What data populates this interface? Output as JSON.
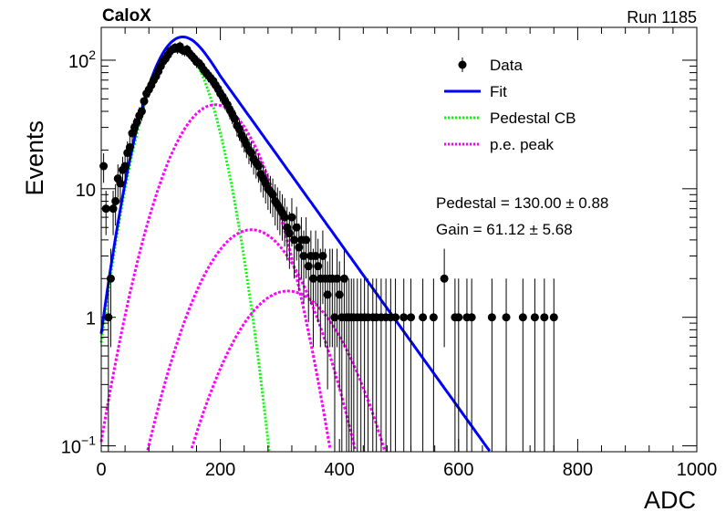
{
  "chart_data": {
    "type": "scatter",
    "title_left": "CaloX",
    "title_right": "Run 1185",
    "xlabel": "ADC",
    "ylabel": "Events",
    "xlim": [
      0,
      1000
    ],
    "ylim": [
      0.09,
      180
    ],
    "yscale": "log",
    "x_ticks": [
      0,
      200,
      400,
      600,
      800,
      1000
    ],
    "y_ticks": [
      {
        "value": 0.1,
        "base": "10",
        "exp": "−1"
      },
      {
        "value": 1,
        "label": "1"
      },
      {
        "value": 10,
        "label": "10"
      },
      {
        "value": 100,
        "base": "10",
        "exp": "2"
      }
    ],
    "legend": {
      "placement": "top-right",
      "entries": [
        {
          "label": "Data",
          "kind": "marker",
          "color": "#000000"
        },
        {
          "label": "Fit",
          "kind": "line",
          "color": "#0000ff"
        },
        {
          "label": "Pedestal CB",
          "kind": "dotted",
          "color": "#00ff00"
        },
        {
          "label": "p.e. peak",
          "kind": "dotted",
          "color": "#ff00ff"
        }
      ]
    },
    "stats": [
      {
        "label": "Pedestal = 130.00",
        "pm": "±",
        "err": "0.88"
      },
      {
        "label": "Gain = 61.12",
        "pm": "±",
        "err": "5.68"
      }
    ],
    "data_points": [
      [
        4,
        15
      ],
      [
        8,
        7
      ],
      [
        12,
        1
      ],
      [
        16,
        2
      ],
      [
        20,
        7
      ],
      [
        24,
        8
      ],
      [
        28,
        12
      ],
      [
        32,
        11
      ],
      [
        36,
        14
      ],
      [
        40,
        15
      ],
      [
        44,
        19
      ],
      [
        48,
        21
      ],
      [
        52,
        27
      ],
      [
        56,
        30
      ],
      [
        60,
        33
      ],
      [
        64,
        37
      ],
      [
        68,
        40
      ],
      [
        72,
        48
      ],
      [
        76,
        55
      ],
      [
        80,
        59
      ],
      [
        84,
        64
      ],
      [
        88,
        70
      ],
      [
        92,
        75
      ],
      [
        96,
        82
      ],
      [
        100,
        90
      ],
      [
        104,
        98
      ],
      [
        108,
        103
      ],
      [
        112,
        110
      ],
      [
        116,
        118
      ],
      [
        120,
        122
      ],
      [
        124,
        125
      ],
      [
        128,
        123
      ],
      [
        132,
        128
      ],
      [
        136,
        120
      ],
      [
        140,
        118
      ],
      [
        144,
        121
      ],
      [
        148,
        113
      ],
      [
        152,
        108
      ],
      [
        156,
        103
      ],
      [
        160,
        97
      ],
      [
        164,
        95
      ],
      [
        168,
        90
      ],
      [
        172,
        84
      ],
      [
        176,
        80
      ],
      [
        180,
        76
      ],
      [
        184,
        72
      ],
      [
        188,
        69
      ],
      [
        192,
        64
      ],
      [
        196,
        60
      ],
      [
        200,
        55
      ],
      [
        204,
        52
      ],
      [
        208,
        48
      ],
      [
        212,
        45
      ],
      [
        216,
        41
      ],
      [
        220,
        38
      ],
      [
        224,
        35
      ],
      [
        228,
        31
      ],
      [
        232,
        29
      ],
      [
        236,
        26
      ],
      [
        240,
        24
      ],
      [
        244,
        22
      ],
      [
        248,
        20
      ],
      [
        252,
        19
      ],
      [
        256,
        17
      ],
      [
        260,
        16
      ],
      [
        264,
        15
      ],
      [
        268,
        13
      ],
      [
        272,
        12
      ],
      [
        276,
        11
      ],
      [
        280,
        10
      ],
      [
        284,
        9.5
      ],
      [
        288,
        9
      ],
      [
        292,
        8
      ],
      [
        296,
        7.5
      ],
      [
        300,
        7
      ],
      [
        304,
        6.5
      ],
      [
        308,
        6
      ],
      [
        312,
        5
      ],
      [
        316,
        4.5
      ],
      [
        320,
        6
      ],
      [
        324,
        4
      ],
      [
        328,
        5
      ],
      [
        332,
        3.5
      ],
      [
        336,
        4
      ],
      [
        340,
        3
      ],
      [
        344,
        4
      ],
      [
        348,
        2.5
      ],
      [
        352,
        3
      ],
      [
        356,
        2
      ],
      [
        360,
        3
      ],
      [
        364,
        2.5
      ],
      [
        368,
        2
      ],
      [
        372,
        3
      ],
      [
        376,
        2
      ],
      [
        380,
        1.5
      ],
      [
        384,
        2
      ],
      [
        388,
        2
      ],
      [
        392,
        1
      ],
      [
        396,
        2
      ],
      [
        400,
        1.5
      ],
      [
        404,
        1
      ],
      [
        408,
        2
      ],
      [
        412,
        1
      ],
      [
        416,
        1
      ],
      [
        420,
        1
      ],
      [
        424,
        1
      ],
      [
        430,
        1
      ],
      [
        436,
        1
      ],
      [
        442,
        1
      ],
      [
        448,
        1
      ],
      [
        456,
        1
      ],
      [
        462,
        1
      ],
      [
        470,
        1
      ],
      [
        478,
        1
      ],
      [
        486,
        1
      ],
      [
        494,
        1
      ],
      [
        508,
        1
      ],
      [
        520,
        1
      ],
      [
        540,
        1
      ],
      [
        558,
        1
      ],
      [
        576,
        2
      ],
      [
        600,
        1
      ],
      [
        622,
        1
      ],
      [
        656,
        1
      ],
      [
        680,
        1
      ],
      [
        708,
        1
      ],
      [
        728,
        1
      ],
      [
        744,
        1
      ],
      [
        760,
        1
      ],
      [
        594,
        1
      ],
      [
        614,
        1
      ]
    ],
    "pedestal_mean": 130.0,
    "gain": 61.12,
    "colors": {
      "data": "#000000",
      "fit": "#0000ff",
      "pedestal": "#00ff00",
      "pe": "#ff00ff"
    }
  }
}
